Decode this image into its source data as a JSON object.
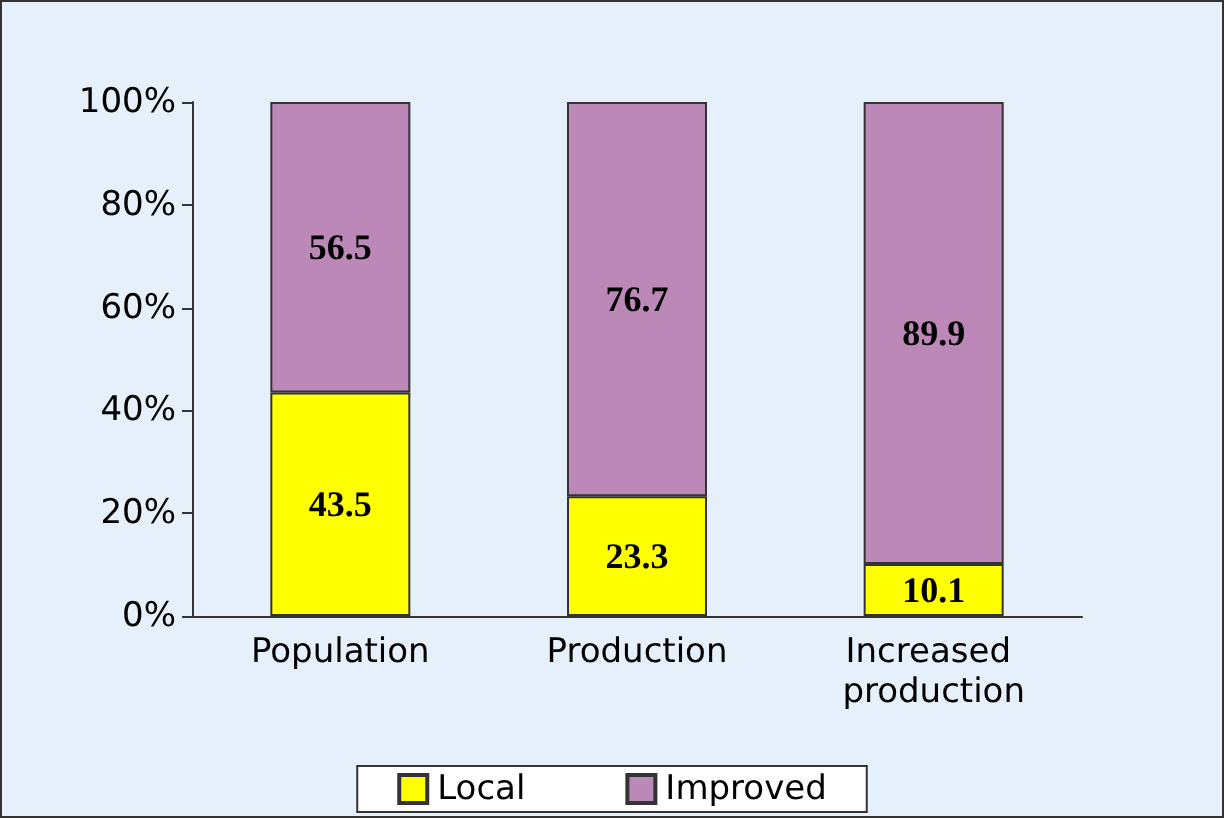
{
  "chart_data": {
    "type": "bar",
    "stacked": true,
    "categories": [
      "Population",
      "Production",
      "Increased production"
    ],
    "series": [
      {
        "name": "Local",
        "color": "#ffff00",
        "values": [
          43.5,
          23.3,
          10.1
        ]
      },
      {
        "name": "Improved",
        "color": "#bb88b8",
        "values": [
          56.5,
          76.7,
          89.9
        ]
      }
    ],
    "ylim": [
      0,
      100
    ],
    "yticks": [
      {
        "value": 0,
        "label": "0%"
      },
      {
        "value": 20,
        "label": "20%"
      },
      {
        "value": 40,
        "label": "40%"
      },
      {
        "value": 60,
        "label": "60%"
      },
      {
        "value": 80,
        "label": "80%"
      },
      {
        "value": 100,
        "label": "100%"
      }
    ],
    "data_labels": true,
    "grid": false,
    "legend": "bottom"
  }
}
